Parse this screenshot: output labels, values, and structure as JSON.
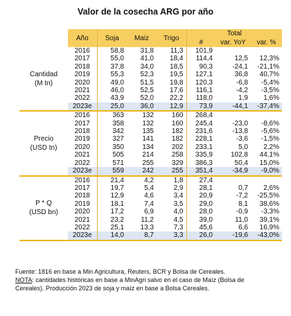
{
  "title": "Valor de la cosecha ARG por año",
  "headers": {
    "year": "Año",
    "soja": "Soja",
    "maiz": "Maiz",
    "trigo": "Trigo",
    "total": "Total",
    "hash": "#",
    "yoy": "var. YoY",
    "pct": "var. %"
  },
  "sections": [
    {
      "label_line1": "Cantidad",
      "label_line2": "(M tn)",
      "rows": [
        {
          "year": "2016",
          "soja": "58,8",
          "maiz": "31,8",
          "trigo": "11,3",
          "total": "101,9",
          "yoy": "",
          "pct": ""
        },
        {
          "year": "2017",
          "soja": "55,0",
          "maiz": "41,0",
          "trigo": "18,4",
          "total": "114,4",
          "yoy": "12,5",
          "pct": "12,3%"
        },
        {
          "year": "2018",
          "soja": "37,8",
          "maiz": "34,0",
          "trigo": "18,5",
          "total": "90,3",
          "yoy": "-24,1",
          "pct": "-21,1%"
        },
        {
          "year": "2019",
          "soja": "55,3",
          "maiz": "52,3",
          "trigo": "19,5",
          "total": "127,1",
          "yoy": "36,8",
          "pct": "40,7%"
        },
        {
          "year": "2020",
          "soja": "49,0",
          "maiz": "51,5",
          "trigo": "19,8",
          "total": "120,3",
          "yoy": "-6,8",
          "pct": "-5,4%"
        },
        {
          "year": "2021",
          "soja": "46,0",
          "maiz": "52,5",
          "trigo": "17,6",
          "total": "116,1",
          "yoy": "-4,2",
          "pct": "-3,5%"
        },
        {
          "year": "2022",
          "soja": "43,9",
          "maiz": "52,0",
          "trigo": "22,2",
          "total": "118,0",
          "yoy": "1,9",
          "pct": "1,6%"
        },
        {
          "year": "2023e",
          "soja": "25,0",
          "maiz": "36,0",
          "trigo": "12,9",
          "total": "73,9",
          "yoy": "-44,1",
          "pct": "-37,4%"
        }
      ]
    },
    {
      "label_line1": "Precio",
      "label_line2": "(USD tn)",
      "rows": [
        {
          "year": "2016",
          "soja": "363",
          "maiz": "132",
          "trigo": "160",
          "total": "268,4",
          "yoy": "",
          "pct": ""
        },
        {
          "year": "2017",
          "soja": "358",
          "maiz": "132",
          "trigo": "160",
          "total": "245,4",
          "yoy": "-23,0",
          "pct": "-8,6%"
        },
        {
          "year": "2018",
          "soja": "342",
          "maiz": "135",
          "trigo": "182",
          "total": "231,6",
          "yoy": "-13,8",
          "pct": "-5,6%"
        },
        {
          "year": "2019",
          "soja": "327",
          "maiz": "141",
          "trigo": "182",
          "total": "228,1",
          "yoy": "-3,6",
          "pct": "-1,5%"
        },
        {
          "year": "2020",
          "soja": "350",
          "maiz": "134",
          "trigo": "202",
          "total": "233,1",
          "yoy": "5,0",
          "pct": "2,2%"
        },
        {
          "year": "2021",
          "soja": "505",
          "maiz": "214",
          "trigo": "258",
          "total": "335,9",
          "yoy": "102,8",
          "pct": "44,1%"
        },
        {
          "year": "2022",
          "soja": "571",
          "maiz": "255",
          "trigo": "329",
          "total": "386,3",
          "yoy": "50,4",
          "pct": "15,0%"
        },
        {
          "year": "2023e",
          "soja": "559",
          "maiz": "242",
          "trigo": "255",
          "total": "351,4",
          "yoy": "-34,9",
          "pct": "-9,0%"
        }
      ]
    },
    {
      "label_line1": "P * Q",
      "label_line2": "(USD bn)",
      "rows": [
        {
          "year": "2016",
          "soja": "21,4",
          "maiz": "4,2",
          "trigo": "1,8",
          "total": "27,4",
          "yoy": "",
          "pct": ""
        },
        {
          "year": "2017",
          "soja": "19,7",
          "maiz": "5,4",
          "trigo": "2,9",
          "total": "28,1",
          "yoy": "0,7",
          "pct": "2,6%"
        },
        {
          "year": "2018",
          "soja": "12,9",
          "maiz": "4,6",
          "trigo": "3,4",
          "total": "20,9",
          "yoy": "-7,2",
          "pct": "-25,5%"
        },
        {
          "year": "2019",
          "soja": "18,1",
          "maiz": "7,4",
          "trigo": "3,5",
          "total": "29,0",
          "yoy": "8,1",
          "pct": "38,6%"
        },
        {
          "year": "2020",
          "soja": "17,2",
          "maiz": "6,9",
          "trigo": "4,0",
          "total": "28,0",
          "yoy": "-0,9",
          "pct": "-3,3%"
        },
        {
          "year": "2021",
          "soja": "23,2",
          "maiz": "11,2",
          "trigo": "4,5",
          "total": "39,0",
          "yoy": "11,0",
          "pct": "39,1%"
        },
        {
          "year": "2022",
          "soja": "25,1",
          "maiz": "13,3",
          "trigo": "7,3",
          "total": "45,6",
          "yoy": "6,6",
          "pct": "16,9%"
        },
        {
          "year": "2023e",
          "soja": "14,0",
          "maiz": "8,7",
          "trigo": "3,3",
          "total": "26,0",
          "yoy": "-19,6",
          "pct": "-43,0%"
        }
      ]
    }
  ],
  "footnote": {
    "line1": "Fuente: 1816 en base a Min Agricultura, Reuters, BCR y Bolsa de Cereales.",
    "nota_label": "NOTA",
    "line2_rest": ": cantidades históricas en base a MinAgri salvo en el caso de Maíz (Bolsa de",
    "line3": "Cereales). Producción 2023 de soja y maíz en base a Bolsa Cereales."
  },
  "colors": {
    "header_bg": "#f7cf60",
    "section_rule": "#f0b41c",
    "estimate_row_bg": "#dde6f2"
  }
}
